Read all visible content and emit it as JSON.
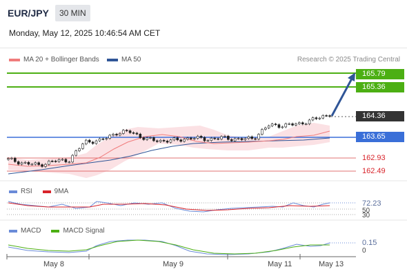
{
  "header": {
    "symbol": "EUR/JPY",
    "timeframe": "30 MIN",
    "datetime": "Monday, May 12, 2025 10:46:54 AM CET"
  },
  "legend": {
    "ma20": "MA 20 + Bollinger Bands",
    "ma50": "MA 50",
    "credit": "Research © 2025 Trading Central",
    "rsi": "RSI",
    "rsi_ma": "9MA",
    "macd": "MACD",
    "macd_signal": "MACD Signal"
  },
  "colors": {
    "ma20": "#f07c7c",
    "ma50": "#2f5597",
    "bands_fill": "#fbe1e4",
    "target": "#4caf13",
    "pivot": "#3a6fd8",
    "support": "#e07070",
    "current": "#333333",
    "rsi": "#6a8bd8",
    "rsi_ma": "#d8232a",
    "macd": "#6a8bd8",
    "macd_signal": "#4caf13",
    "arrow": "#2f5597"
  },
  "levels": {
    "resistance_2": "165.79",
    "resistance_1": "165.36",
    "last_price": "164.36",
    "pivot": "163.65",
    "support_1": "162.93",
    "support_2": "162.49"
  },
  "indicators": {
    "rsi_value": "72.23",
    "rsi_level_70": "70",
    "rsi_level_50": "50",
    "rsi_level_30": "30",
    "macd_value": "0.15",
    "macd_zero": "0"
  },
  "x_axis": [
    "May 8",
    "May 9",
    "May 11",
    "May 13"
  ],
  "chart_data": {
    "type": "candlestick",
    "price_axis": {
      "ylim": [
        162.3,
        166.0
      ]
    },
    "close_path": [
      162.9,
      162.78,
      162.72,
      162.85,
      162.88,
      163.48,
      163.5,
      163.75,
      163.8,
      163.55,
      163.5,
      163.52,
      163.6,
      163.55,
      163.6,
      163.55,
      163.58,
      164.0,
      164.0,
      164.05,
      164.2,
      164.36
    ],
    "ma20_path": [
      162.85,
      162.84,
      162.86,
      163.0,
      163.3,
      163.55,
      163.65,
      163.6,
      163.58,
      163.58,
      163.6,
      163.62,
      163.65,
      163.8,
      163.85,
      164.0
    ],
    "ma50_path": [
      162.6,
      162.8,
      163.0,
      163.25,
      163.45,
      163.55,
      163.57,
      163.6,
      163.63,
      163.65
    ]
  }
}
